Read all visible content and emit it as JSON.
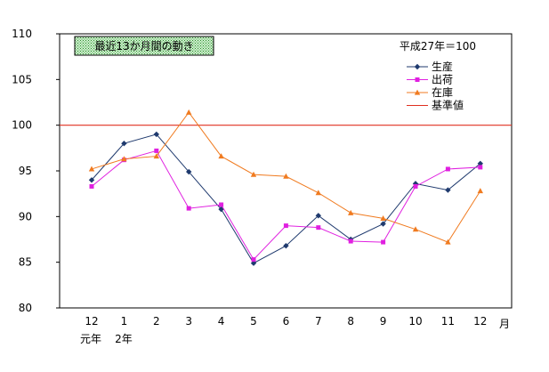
{
  "chart_data": {
    "type": "line",
    "title": "最近13か月間の動き",
    "base_note": "平成27年＝100",
    "categories": [
      "12",
      "1",
      "2",
      "3",
      "4",
      "5",
      "6",
      "7",
      "8",
      "9",
      "10",
      "11",
      "12"
    ],
    "x_unit": "月",
    "year_labels": [
      "元年",
      "2年"
    ],
    "ylim": [
      80,
      110
    ],
    "y_ticks": [
      "80",
      "85",
      "90",
      "95",
      "100",
      "105",
      "110"
    ],
    "grid": false,
    "legend_position": "top-right",
    "reference_line": {
      "name": "基準値",
      "value": 100,
      "color": "#e03020"
    },
    "series": [
      {
        "name": "生産",
        "color": "#1f3a6e",
        "marker": "diamond",
        "values": [
          94.0,
          98.0,
          99.0,
          94.9,
          90.8,
          84.9,
          86.8,
          90.1,
          87.5,
          89.2,
          93.6,
          92.9,
          95.8
        ]
      },
      {
        "name": "出荷",
        "color": "#e020e0",
        "marker": "square",
        "values": [
          93.3,
          96.2,
          97.2,
          90.9,
          91.3,
          85.3,
          89.0,
          88.8,
          87.3,
          87.2,
          93.3,
          95.2,
          95.4
        ]
      },
      {
        "name": "在庫",
        "color": "#f07b20",
        "marker": "triangle",
        "values": [
          95.2,
          96.3,
          96.6,
          101.4,
          96.6,
          94.6,
          94.4,
          92.6,
          90.4,
          89.8,
          88.6,
          87.2,
          92.8
        ]
      }
    ]
  }
}
